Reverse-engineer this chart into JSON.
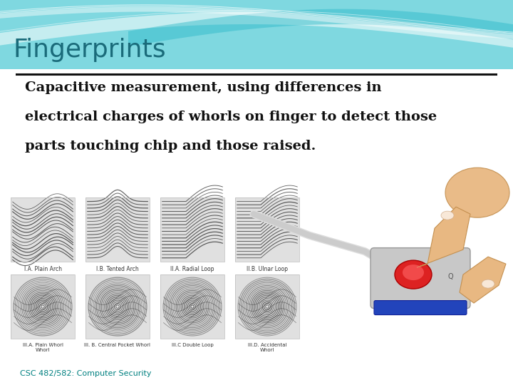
{
  "title": "Fingerprints",
  "title_color": "#1a6b7a",
  "title_fontsize": 26,
  "subtitle_lines": [
    "Capacitive measurement, using differences in",
    "electrical charges of whorls on finger to detect those",
    "parts touching chip and those raised."
  ],
  "subtitle_color": "#111111",
  "subtitle_fontsize": 14,
  "footer_text": "CSC 482/582: Computer Security",
  "footer_color": "#008080",
  "footer_fontsize": 8,
  "bg_color": "#ffffff",
  "header_teal_light": "#7fd8e0",
  "header_teal_dark": "#2ab8c8",
  "separator_color": "#111111",
  "fp_labels_top": [
    "I.A. Plain Arch",
    "I.B. Tented Arch",
    "II.A. Radial Loop",
    "II.B. Ulnar Loop"
  ],
  "fp_labels_bot": [
    "III.A. Plain Whorl\nWhorl",
    "III. B. Central Pocket Whorl",
    "III.C Double Loop",
    "III.D. Accidental\nWhorl"
  ]
}
